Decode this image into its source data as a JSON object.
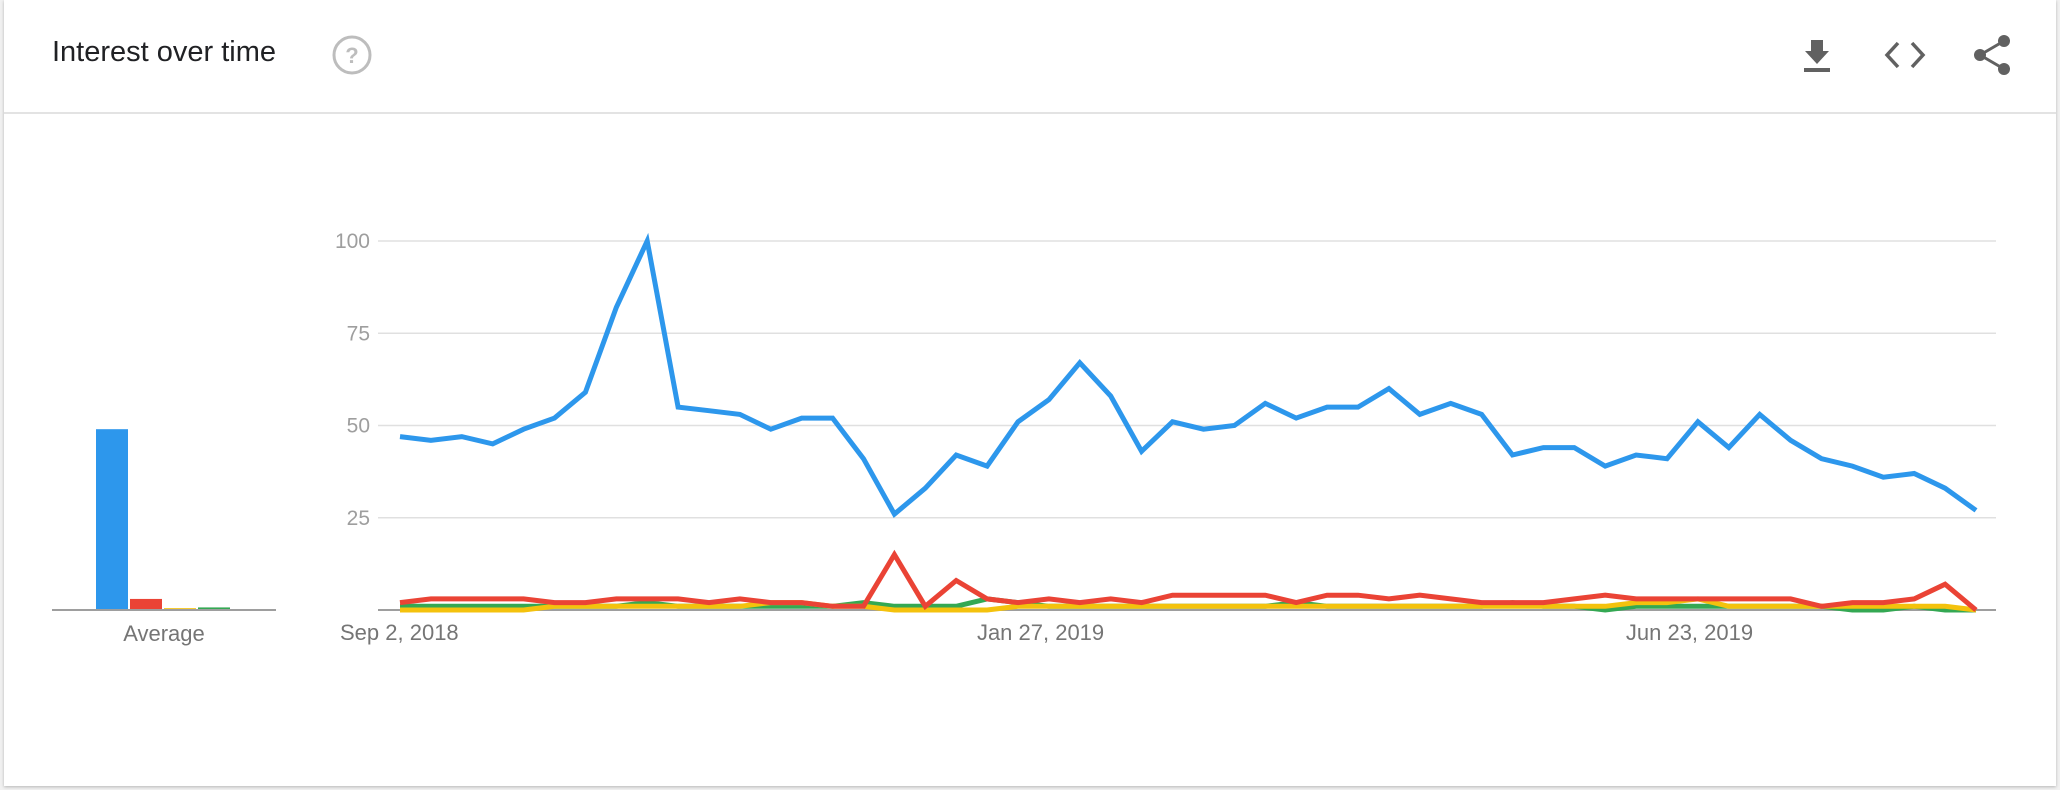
{
  "header": {
    "title": "Interest over time",
    "help_icon": "help-circle-icon",
    "actions": [
      {
        "name": "download-button",
        "icon": "download-icon"
      },
      {
        "name": "embed-button",
        "icon": "code-icon"
      },
      {
        "name": "share-button",
        "icon": "share-icon"
      }
    ]
  },
  "colors": {
    "blue": "#2d97ec",
    "red": "#ea4335",
    "yellow": "#f4c20d",
    "green": "#34a853",
    "grid": "#e0e0e0",
    "tick_text": "#9e9e9e",
    "axis_text": "#757575"
  },
  "chart_data": [
    {
      "type": "line",
      "title": "Interest over time",
      "ylim": [
        0,
        100
      ],
      "y_ticks": [
        "25",
        "50",
        "75",
        "100"
      ],
      "x_ticks": [
        "Sep 2, 2018",
        "Jan 27, 2019",
        "Jun 23, 2019"
      ],
      "x_tick_index": [
        0,
        21,
        42
      ],
      "grid": true,
      "series": [
        {
          "color": "#2d97ec",
          "values": [
            47,
            46,
            47,
            45,
            49,
            52,
            59,
            82,
            100,
            55,
            54,
            53,
            49,
            52,
            52,
            41,
            26,
            33,
            42,
            39,
            51,
            57,
            67,
            58,
            43,
            51,
            49,
            50,
            56,
            52,
            55,
            55,
            60,
            53,
            56,
            53,
            42,
            44,
            44,
            39,
            42,
            41,
            51,
            44,
            53,
            46,
            41,
            39,
            36,
            37,
            33,
            27
          ]
        },
        {
          "color": "#ea4335",
          "values": [
            2,
            3,
            3,
            3,
            3,
            2,
            2,
            3,
            3,
            3,
            2,
            3,
            2,
            2,
            1,
            1,
            15,
            1,
            8,
            3,
            2,
            3,
            2,
            3,
            2,
            4,
            4,
            4,
            4,
            2,
            4,
            4,
            3,
            4,
            3,
            2,
            2,
            2,
            3,
            4,
            3,
            3,
            3,
            3,
            3,
            3,
            1,
            2,
            2,
            3,
            7,
            0
          ]
        },
        {
          "color": "#f4c20d",
          "values": [
            0,
            0,
            0,
            0,
            0,
            1,
            1,
            1,
            1,
            1,
            1,
            1,
            2,
            2,
            1,
            1,
            0,
            0,
            0,
            0,
            1,
            1,
            1,
            1,
            1,
            1,
            1,
            1,
            1,
            1,
            1,
            1,
            1,
            1,
            1,
            1,
            1,
            1,
            1,
            1,
            2,
            2,
            3,
            1,
            1,
            1,
            1,
            1,
            1,
            1,
            1,
            0
          ]
        },
        {
          "color": "#34a853",
          "values": [
            1,
            1,
            1,
            1,
            1,
            1,
            1,
            1,
            2,
            1,
            1,
            1,
            1,
            1,
            1,
            2,
            1,
            1,
            1,
            3,
            2,
            1,
            1,
            1,
            1,
            1,
            1,
            1,
            1,
            2,
            1,
            1,
            1,
            1,
            1,
            1,
            2,
            1,
            1,
            0,
            1,
            1,
            1,
            1,
            1,
            1,
            1,
            0,
            0,
            1,
            0,
            0
          ]
        }
      ]
    },
    {
      "type": "bar",
      "xlabel": "Average",
      "series": [
        {
          "color": "#2d97ec",
          "value": 49
        },
        {
          "color": "#ea4335",
          "value": 3
        },
        {
          "color": "#f4c20d",
          "value": 0.5
        },
        {
          "color": "#34a853",
          "value": 0.7
        }
      ]
    }
  ]
}
